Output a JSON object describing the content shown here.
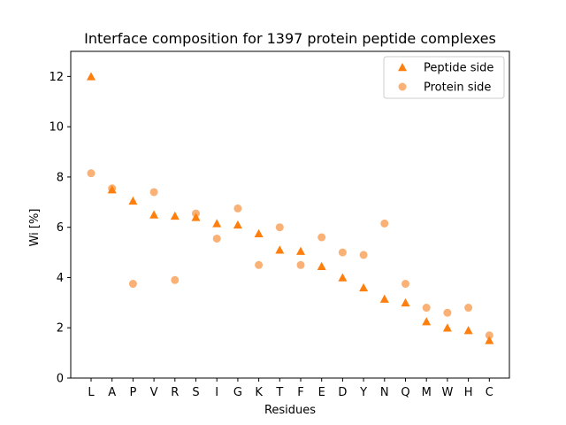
{
  "chart_data": {
    "type": "scatter",
    "title": "Interface composition for 1397 protein peptide complexes",
    "xlabel": "Residues",
    "ylabel": "Wi [%]",
    "categories": [
      "L",
      "A",
      "P",
      "V",
      "R",
      "S",
      "I",
      "G",
      "K",
      "T",
      "F",
      "E",
      "D",
      "Y",
      "N",
      "Q",
      "M",
      "W",
      "H",
      "C"
    ],
    "ylim": [
      0,
      13
    ],
    "yticks": [
      0,
      2,
      4,
      6,
      8,
      10,
      12
    ],
    "grid": false,
    "legend_position": "top-right",
    "series": [
      {
        "name": "Peptide side",
        "marker": "triangle",
        "color": "#ff7f0e",
        "values": [
          12.0,
          7.5,
          7.05,
          6.5,
          6.45,
          6.4,
          6.15,
          6.1,
          5.75,
          5.1,
          5.05,
          4.45,
          4.0,
          3.6,
          3.15,
          3.0,
          2.25,
          2.0,
          1.9,
          1.5
        ]
      },
      {
        "name": "Protein side",
        "marker": "circle",
        "color": "#f9b176",
        "values": [
          8.15,
          7.55,
          3.75,
          7.4,
          3.9,
          6.55,
          5.55,
          6.75,
          4.5,
          6.0,
          4.5,
          5.6,
          5.0,
          4.9,
          6.15,
          3.75,
          2.8,
          2.6,
          2.8,
          1.7
        ]
      }
    ]
  }
}
